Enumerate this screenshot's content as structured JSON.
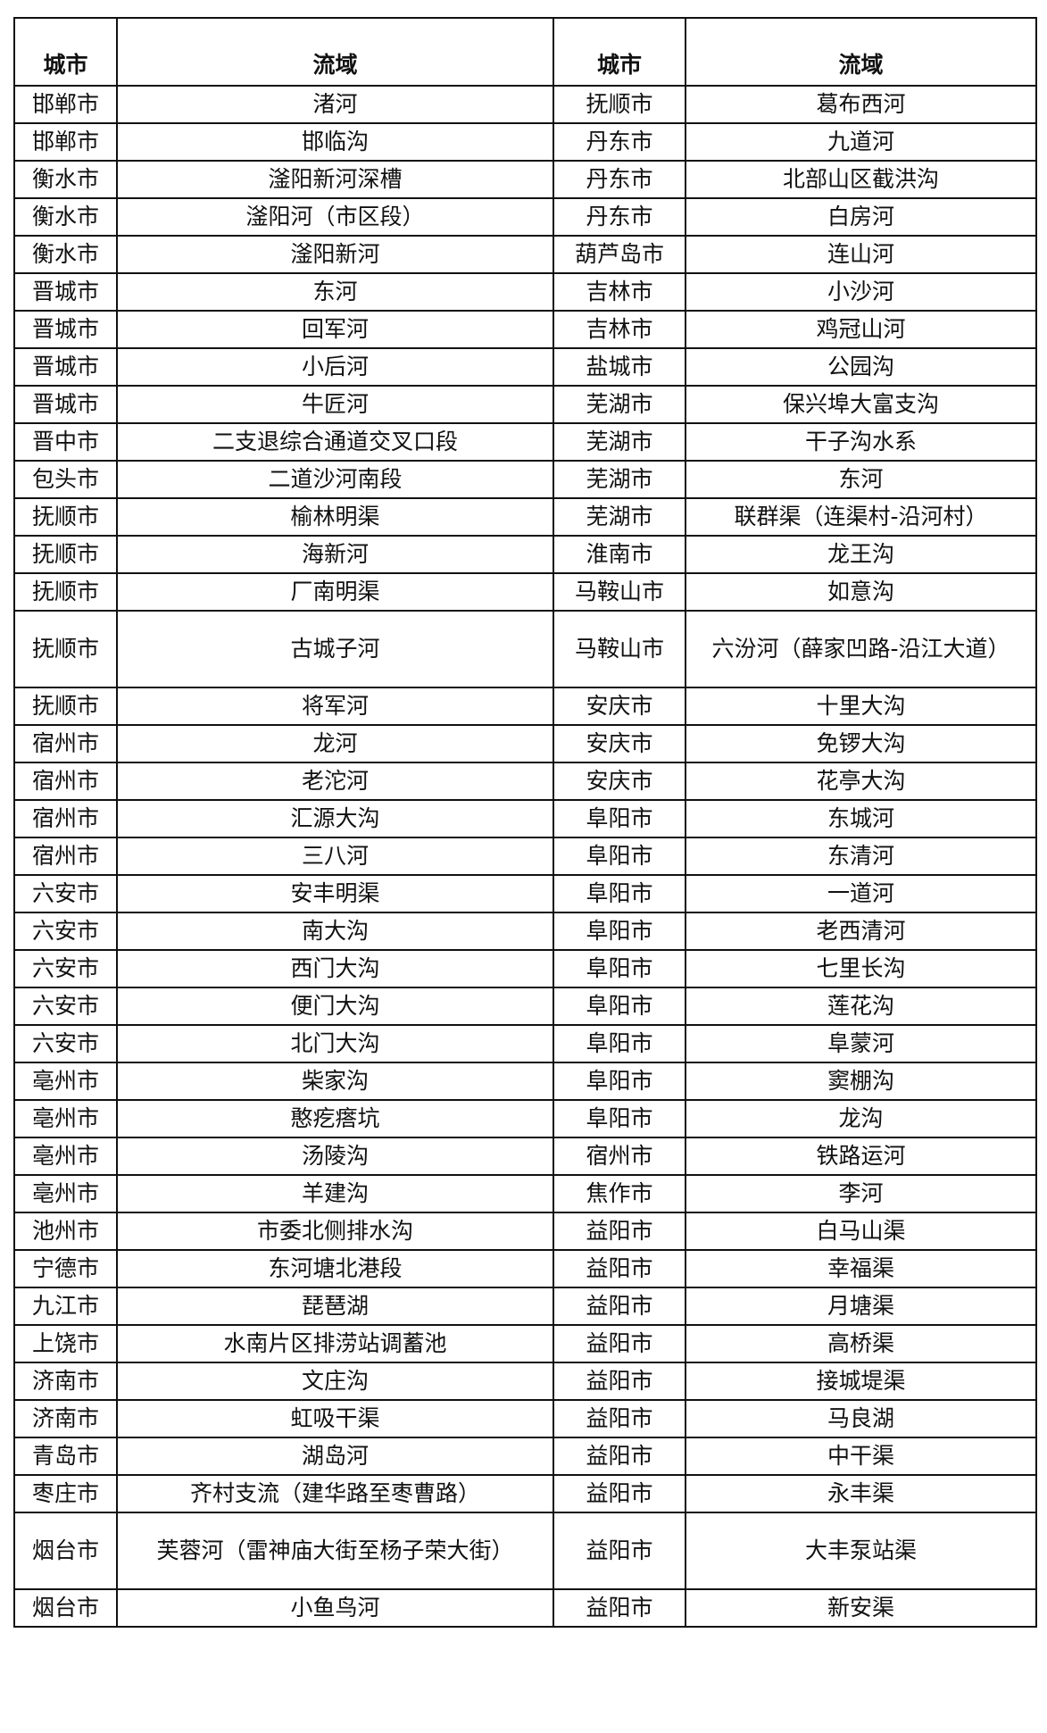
{
  "headers": [
    "城市",
    "流域",
    "城市",
    "流域"
  ],
  "rows": [
    [
      "邯郸市",
      "渚河",
      "抚顺市",
      "葛布西河"
    ],
    [
      "邯郸市",
      "邯临沟",
      "丹东市",
      "九道河"
    ],
    [
      "衡水市",
      "滏阳新河深槽",
      "丹东市",
      "北部山区截洪沟"
    ],
    [
      "衡水市",
      "滏阳河（市区段）",
      "丹东市",
      "白房河"
    ],
    [
      "衡水市",
      "滏阳新河",
      "葫芦岛市",
      "连山河"
    ],
    [
      "晋城市",
      "东河",
      "吉林市",
      "小沙河"
    ],
    [
      "晋城市",
      "回军河",
      "吉林市",
      "鸡冠山河"
    ],
    [
      "晋城市",
      "小后河",
      "盐城市",
      "公园沟"
    ],
    [
      "晋城市",
      "牛匠河",
      "芜湖市",
      "保兴埠大富支沟"
    ],
    [
      "晋中市",
      "二支退综合通道交叉口段",
      "芜湖市",
      "干子沟水系"
    ],
    [
      "包头市",
      "二道沙河南段",
      "芜湖市",
      "东河"
    ],
    [
      "抚顺市",
      "榆林明渠",
      "芜湖市",
      "联群渠（连渠村-沿河村）"
    ],
    [
      "抚顺市",
      "海新河",
      "淮南市",
      "龙王沟"
    ],
    [
      "抚顺市",
      "厂南明渠",
      "马鞍山市",
      "如意沟"
    ],
    [
      "抚顺市",
      "古城子河",
      "马鞍山市",
      "六汾河（薛家凹路-沿江大道）"
    ],
    [
      "抚顺市",
      "将军河",
      "安庆市",
      "十里大沟"
    ],
    [
      "宿州市",
      "龙河",
      "安庆市",
      "免锣大沟"
    ],
    [
      "宿州市",
      "老沱河",
      "安庆市",
      "花亭大沟"
    ],
    [
      "宿州市",
      "汇源大沟",
      "阜阳市",
      "东城河"
    ],
    [
      "宿州市",
      "三八河",
      "阜阳市",
      "东清河"
    ],
    [
      "六安市",
      "安丰明渠",
      "阜阳市",
      "一道河"
    ],
    [
      "六安市",
      "南大沟",
      "阜阳市",
      "老西清河"
    ],
    [
      "六安市",
      "西门大沟",
      "阜阳市",
      "七里长沟"
    ],
    [
      "六安市",
      "便门大沟",
      "阜阳市",
      "莲花沟"
    ],
    [
      "六安市",
      "北门大沟",
      "阜阳市",
      "阜蒙河"
    ],
    [
      "亳州市",
      "柴家沟",
      "阜阳市",
      "窦棚沟"
    ],
    [
      "亳州市",
      "憨疙瘩坑",
      "阜阳市",
      "龙沟"
    ],
    [
      "亳州市",
      "汤陵沟",
      "宿州市",
      "铁路运河"
    ],
    [
      "亳州市",
      "羊建沟",
      "焦作市",
      "李河"
    ],
    [
      "池州市",
      "市委北侧排水沟",
      "益阳市",
      "白马山渠"
    ],
    [
      "宁德市",
      "东河塘北港段",
      "益阳市",
      "幸福渠"
    ],
    [
      "九江市",
      "琵琶湖",
      "益阳市",
      "月塘渠"
    ],
    [
      "上饶市",
      "水南片区排涝站调蓄池",
      "益阳市",
      "高桥渠"
    ],
    [
      "济南市",
      "文庄沟",
      "益阳市",
      "接城堤渠"
    ],
    [
      "济南市",
      "虹吸干渠",
      "益阳市",
      "马良湖"
    ],
    [
      "青岛市",
      "湖岛河",
      "益阳市",
      "中干渠"
    ],
    [
      "枣庄市",
      "齐村支流（建华路至枣曹路）",
      "益阳市",
      "永丰渠"
    ],
    [
      "烟台市",
      "芙蓉河（雷神庙大街至杨子荣大街）",
      "益阳市",
      "大丰泵站渠"
    ],
    [
      "烟台市",
      "小鱼鸟河",
      "益阳市",
      "新安渠"
    ]
  ]
}
